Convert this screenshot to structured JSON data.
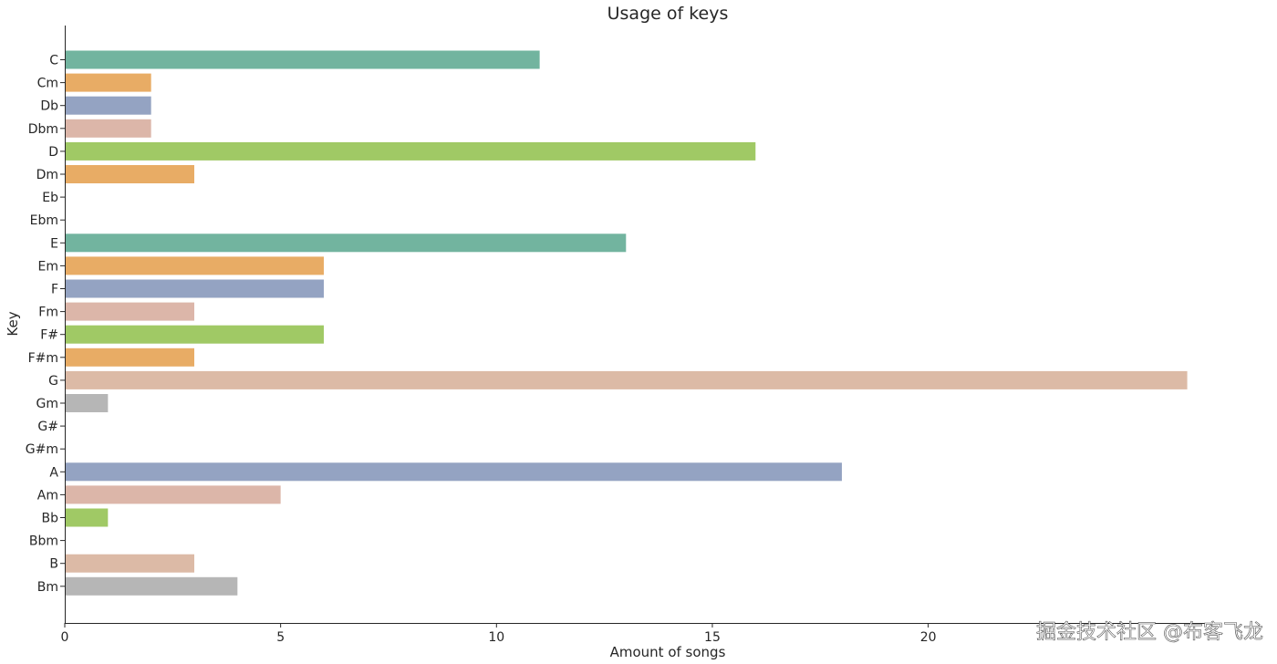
{
  "chart_data": {
    "type": "bar",
    "orientation": "horizontal",
    "title": "Usage of keys",
    "xlabel": "Amount of songs",
    "ylabel": "Key",
    "xlim": [
      0,
      26.6
    ],
    "xticks": [
      0,
      5,
      10,
      15,
      20
    ],
    "grid": false,
    "categories": [
      "C",
      "Cm",
      "Db",
      "Dbm",
      "D",
      "Dm",
      "Eb",
      "Ebm",
      "E",
      "Em",
      "F",
      "Fm",
      "F#",
      "F#m",
      "G",
      "Gm",
      "G#",
      "G#m",
      "A",
      "Am",
      "Bb",
      "Bbm",
      "B",
      "Bm"
    ],
    "values": [
      11,
      2,
      2,
      2,
      16,
      3,
      0,
      0,
      13,
      6,
      6,
      3,
      6,
      3,
      26,
      1,
      0,
      0,
      18,
      5,
      1,
      0,
      3,
      4
    ],
    "colors": [
      "#72b49f",
      "#e8ac65",
      "#94a3c2",
      "#dcb6a9",
      "#a0c965",
      "#e8ac65",
      "#e0c98a",
      "#b8b8b8",
      "#72b49f",
      "#e8ac65",
      "#94a3c2",
      "#dcb6a9",
      "#a0c965",
      "#e8ac65",
      "#dcbaa6",
      "#b6b6b6",
      "#72b49f",
      "#e8ac65",
      "#94a3c2",
      "#dcb6a9",
      "#a0c965",
      "#e0c98a",
      "#dcbaa6",
      "#b6b6b6"
    ]
  },
  "watermark": "掘金技术社区 @布客飞龙"
}
